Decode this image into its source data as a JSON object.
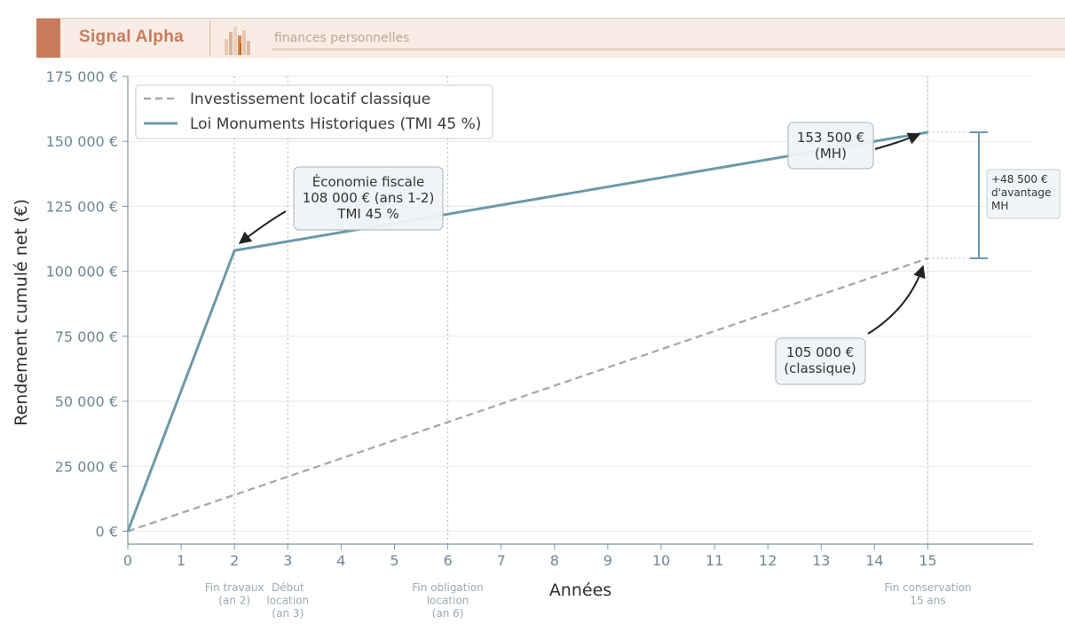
{
  "header": {
    "brand": "Signal Alpha",
    "subtitle": "finances personnelles",
    "colors": {
      "accent": "#c97c5d",
      "background": "#f8ece4"
    }
  },
  "chart_data": {
    "type": "line",
    "xlabel": "Années",
    "ylabel": "Rendement cumulé net (€)",
    "xlim": [
      0,
      17
    ],
    "ylim": [
      -5000,
      175000
    ],
    "x_ticks": [
      0,
      1,
      2,
      3,
      4,
      5,
      6,
      7,
      8,
      9,
      10,
      11,
      12,
      13,
      14,
      15
    ],
    "y_ticks": [
      {
        "value": 0,
        "label": "0 €"
      },
      {
        "value": 25000,
        "label": "25 000 €"
      },
      {
        "value": 50000,
        "label": "50 000 €"
      },
      {
        "value": 75000,
        "label": "75 000 €"
      },
      {
        "value": 100000,
        "label": "100 000 €"
      },
      {
        "value": 125000,
        "label": "125 000 €"
      },
      {
        "value": 150000,
        "label": "150 000 €"
      },
      {
        "value": 175000,
        "label": "175 000 €"
      }
    ],
    "grid": true,
    "legend_position": "top-left",
    "series": [
      {
        "name": "Investissement locatif classique",
        "color": "#a8a8a8",
        "style": "dashed",
        "x": [
          0,
          15
        ],
        "y": [
          0,
          105000
        ]
      },
      {
        "name": "Loi Monuments Historiques (TMI 45 %)",
        "color": "#6b9aa8",
        "style": "solid",
        "x": [
          0,
          2,
          15
        ],
        "y": [
          0,
          108000,
          153500
        ]
      }
    ],
    "milestones": [
      {
        "x": 2,
        "lines": [
          "Fin travaux",
          "(an 2)"
        ]
      },
      {
        "x": 3,
        "lines": [
          "Début",
          "location",
          "(an 3)"
        ]
      },
      {
        "x": 6,
        "lines": [
          "Fin obligation",
          "location",
          "(an 6)"
        ]
      },
      {
        "x": 15,
        "lines": [
          "Fin conservation",
          "15 ans"
        ]
      }
    ],
    "callouts": [
      {
        "lines": [
          "Économie fiscale",
          "108 000 € (ans 1-2)",
          "TMI 45 %"
        ],
        "target": [
          2,
          108000
        ]
      },
      {
        "lines": [
          "153 500 €",
          "(MH)"
        ],
        "target": [
          15,
          153500
        ]
      },
      {
        "lines": [
          "105 000 €",
          "(classique)"
        ],
        "target": [
          15,
          105000
        ]
      }
    ],
    "advantage": {
      "from": 105000,
      "to": 153500,
      "lines": [
        "+48 500 €",
        "d'avantage",
        "MH"
      ]
    }
  }
}
